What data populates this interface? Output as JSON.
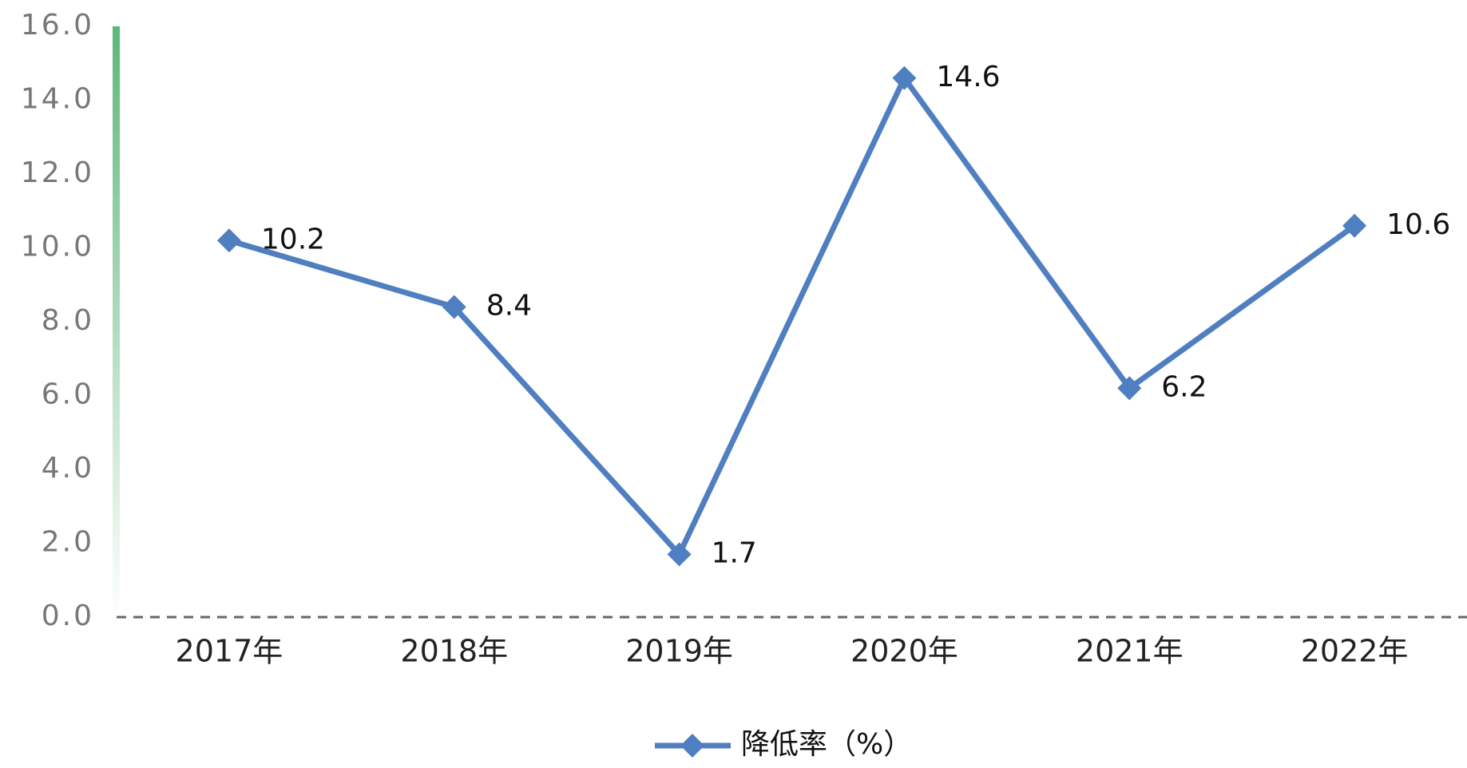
{
  "chart_data": {
    "type": "line",
    "categories": [
      "2017年",
      "2018年",
      "2019年",
      "2020年",
      "2021年",
      "2022年"
    ],
    "series": [
      {
        "name": "降低率（%）",
        "color": "#4f7fc0",
        "values": [
          10.2,
          8.4,
          1.7,
          14.6,
          6.2,
          10.6
        ]
      }
    ],
    "ylim": [
      0,
      16
    ],
    "yticks": [
      {
        "value": 0,
        "label": "0.0"
      },
      {
        "value": 2,
        "label": "2.0"
      },
      {
        "value": 4,
        "label": "4.0"
      },
      {
        "value": 6,
        "label": "6.0"
      },
      {
        "value": 8,
        "label": "8.0"
      },
      {
        "value": 10,
        "label": "10.0"
      },
      {
        "value": 12,
        "label": "12.0"
      },
      {
        "value": 14,
        "label": "14.0"
      },
      {
        "value": 16,
        "label": "16.0"
      }
    ],
    "grid": false,
    "legend": "bottom"
  }
}
